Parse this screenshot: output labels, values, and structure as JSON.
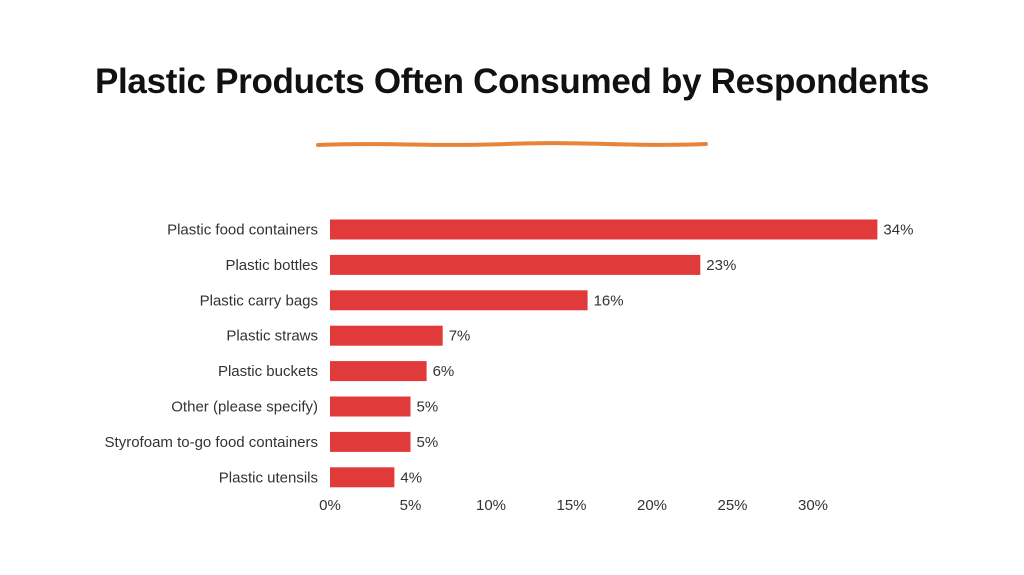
{
  "slide": {
    "title": "Plastic Products Often Consumed by Respondents",
    "accent_color": "#e8833a"
  },
  "chart_data": {
    "type": "bar",
    "orientation": "horizontal",
    "categories": [
      "Plastic food containers",
      "Plastic bottles",
      "Plastic carry bags",
      "Plastic straws",
      "Plastic buckets",
      "Other (please specify)",
      "Styrofoam to-go food containers",
      "Plastic utensils"
    ],
    "values": [
      34,
      23,
      16,
      7,
      6,
      5,
      5,
      4
    ],
    "data_labels": [
      "34%",
      "23%",
      "16%",
      "7%",
      "6%",
      "5%",
      "5%",
      "4%"
    ],
    "x_ticks": [
      "0%",
      "5%",
      "10%",
      "15%",
      "20%",
      "25%",
      "30%"
    ],
    "x_tick_values": [
      0,
      5,
      10,
      15,
      20,
      25,
      30
    ],
    "xlim": [
      0,
      34
    ],
    "grid": false,
    "legend": "none",
    "bar_color": "#e03a3a"
  }
}
